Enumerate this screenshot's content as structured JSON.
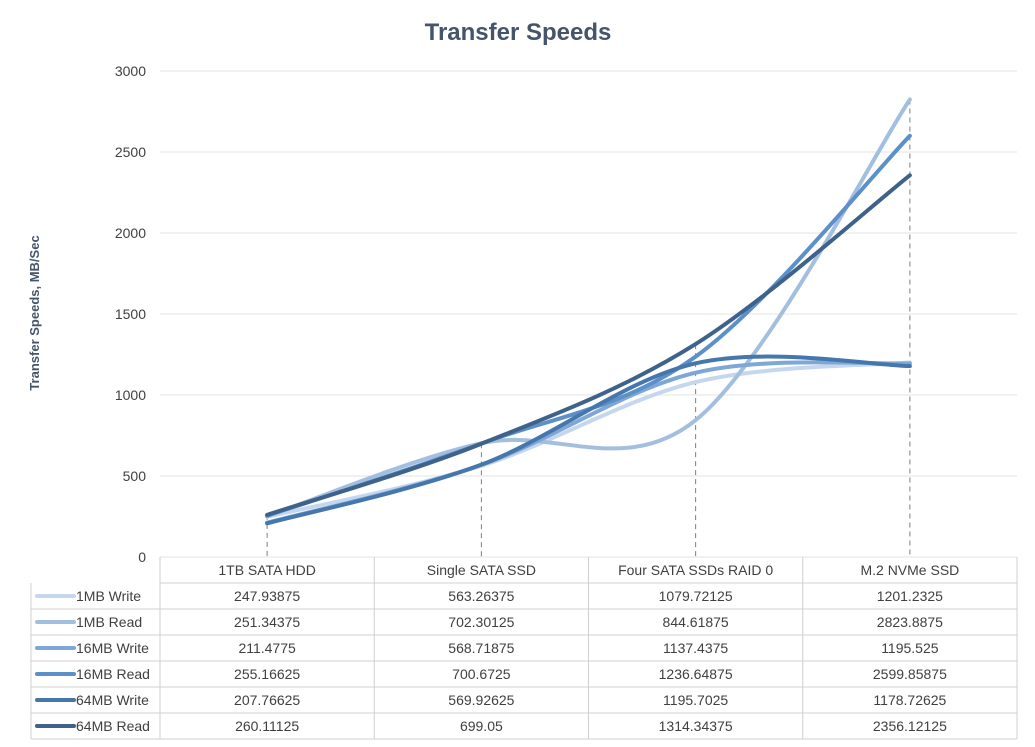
{
  "chart_data": {
    "type": "line",
    "title": "Transfer Speeds",
    "ylabel": "Transfer Speeds, MB/Sec",
    "xlabel": "",
    "ylim": [
      0,
      3000
    ],
    "yticks": [
      0,
      500,
      1000,
      1500,
      2000,
      2500,
      3000
    ],
    "grid": true,
    "smooth": true,
    "data_table": true,
    "categories": [
      "1TB SATA HDD",
      "Single SATA SSD",
      "Four SATA SSDs RAID 0",
      "M.2 NVMe SSD"
    ],
    "series": [
      {
        "name": "1MB Write",
        "color": "#c5d7ee",
        "values": [
          247.93875,
          563.26375,
          1079.72125,
          1201.2325
        ],
        "labels": [
          "247.93875",
          "563.26375",
          "1079.72125",
          "1201.2325"
        ]
      },
      {
        "name": "1MB Read",
        "color": "#a3bfe0",
        "values": [
          251.34375,
          702.30125,
          844.61875,
          2823.8875
        ],
        "labels": [
          "251.34375",
          "702.30125",
          "844.61875",
          "2823.8875"
        ]
      },
      {
        "name": "16MB Write",
        "color": "#7ea6d6",
        "values": [
          211.4775,
          568.71875,
          1137.4375,
          1195.525
        ],
        "labels": [
          "211.4775",
          "568.71875",
          "1137.4375",
          "1195.525"
        ]
      },
      {
        "name": "16MB Read",
        "color": "#5b90c9",
        "values": [
          255.16625,
          700.6725,
          1236.64875,
          2599.85875
        ],
        "labels": [
          "255.16625",
          "700.6725",
          "1236.64875",
          "2599.85875"
        ]
      },
      {
        "name": "64MB Write",
        "color": "#4677ac",
        "values": [
          207.76625,
          569.92625,
          1195.7025,
          1178.72625
        ],
        "labels": [
          "207.76625",
          "569.92625",
          "1195.7025",
          "1178.72625"
        ]
      },
      {
        "name": "64MB Read",
        "color": "#3e6289",
        "values": [
          260.11125,
          699.05,
          1314.34375,
          2356.12125
        ],
        "labels": [
          "260.11125",
          "699.05",
          "1314.34375",
          "2356.12125"
        ]
      }
    ]
  }
}
